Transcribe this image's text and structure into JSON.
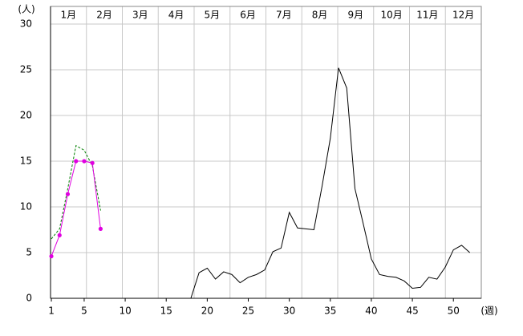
{
  "chart_data": {
    "type": "line",
    "y_label": "(人)",
    "x_label": "(週)",
    "months": [
      "1月",
      "2月",
      "3月",
      "4月",
      "5月",
      "6月",
      "7月",
      "8月",
      "9月",
      "10月",
      "11月",
      "12月"
    ],
    "x": [
      1,
      2,
      3,
      4,
      5,
      6,
      7,
      8,
      9,
      10,
      11,
      12,
      13,
      14,
      15,
      16,
      17,
      18,
      19,
      20,
      21,
      22,
      23,
      24,
      25,
      26,
      27,
      28,
      29,
      30,
      31,
      32,
      33,
      34,
      35,
      36,
      37,
      38,
      39,
      40,
      41,
      42,
      43,
      44,
      45,
      46,
      47,
      48,
      49,
      50,
      51,
      52
    ],
    "series": [
      {
        "color": "#000000",
        "dash": false,
        "markers": false,
        "values": [
          0,
          0,
          0,
          0,
          0,
          0,
          0,
          0,
          0,
          0,
          0,
          0,
          0,
          0,
          0,
          0,
          0,
          0,
          2.8,
          3.3,
          2.1,
          2.9,
          2.6,
          1.7,
          2.3,
          2.6,
          3.1,
          5.1,
          5.5,
          9.4,
          7.7,
          7.6,
          7.5,
          12.3,
          17.5,
          25.2,
          23.0,
          12.0,
          8.2,
          4.3,
          2.6,
          2.4,
          2.3,
          1.9,
          1.1,
          1.2,
          2.3,
          2.1,
          3.4,
          5.3,
          5.8,
          5.0
        ]
      },
      {
        "color": "#008000",
        "dash": true,
        "markers": false,
        "values": [
          6.5,
          7.6,
          12.0,
          16.7,
          16.2,
          14.5,
          9.6,
          null,
          null,
          null,
          null,
          null,
          null,
          null,
          null,
          null,
          null,
          null,
          null,
          null,
          null,
          null,
          null,
          null,
          null,
          null,
          null,
          null,
          null,
          null,
          null,
          null,
          null,
          null,
          null,
          null,
          null,
          null,
          null,
          null,
          null,
          null,
          null,
          null,
          null,
          null,
          null,
          null,
          null,
          null,
          null,
          null
        ]
      },
      {
        "color": "#e000e0",
        "dash": false,
        "markers": true,
        "values": [
          4.6,
          6.9,
          11.4,
          15.0,
          15.0,
          14.8,
          7.6,
          null,
          null,
          null,
          null,
          null,
          null,
          null,
          null,
          null,
          null,
          null,
          null,
          null,
          null,
          null,
          null,
          null,
          null,
          null,
          null,
          null,
          null,
          null,
          null,
          null,
          null,
          null,
          null,
          null,
          null,
          null,
          null,
          null,
          null,
          null,
          null,
          null,
          null,
          null,
          null,
          null,
          null,
          null,
          null,
          null
        ]
      }
    ],
    "xlim": [
      0.9,
      53.4
    ],
    "ylim": [
      0,
      30
    ],
    "xticks": [
      1,
      5,
      10,
      15,
      20,
      25,
      30,
      35,
      40,
      45,
      50
    ],
    "yticks": [
      0,
      5,
      10,
      15,
      20,
      25,
      30
    ],
    "grid": true
  }
}
